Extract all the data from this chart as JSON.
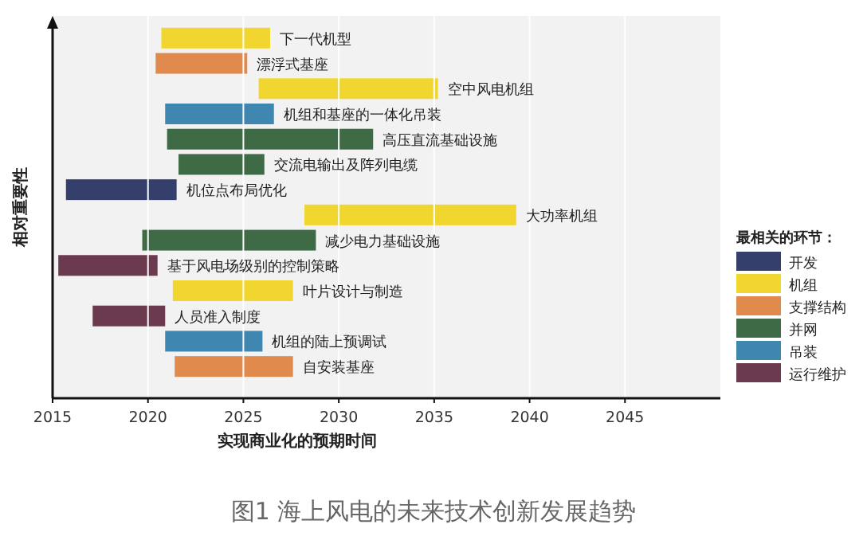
{
  "chart_data": {
    "type": "bar",
    "orientation": "horizontal",
    "title": "图1 海上风电的未来技术创新发展趋势",
    "xlabel": "实现商业化的预期时间",
    "ylabel": "相对重要性",
    "legend_title": "最相关的环节：",
    "legend": "right",
    "grid": "x",
    "tick_labels": "x",
    "xlim": [
      2015,
      2050
    ],
    "xticks": [
      2015,
      2020,
      2025,
      2030,
      2035,
      2040,
      2045
    ],
    "categories": [
      "下一代机型",
      "漂浮式基座",
      "空中风电机组",
      "机组和基座的一体化吊装",
      "高压直流基础设施",
      "交流电输出及阵列电缆",
      "机位点布局优化",
      "大功率机组",
      "减少电力基础设施",
      "基于风电场级别的控制策略",
      "叶片设计与制造",
      "人员准入制度",
      "机组的陆上预调试",
      "自安装基座"
    ],
    "series": [
      {
        "name": "开发",
        "color": "#34406b",
        "base": [
          null,
          null,
          null,
          null,
          null,
          null,
          2015.7,
          null,
          null,
          null,
          null,
          null,
          null,
          null
        ],
        "values": [
          null,
          null,
          null,
          null,
          null,
          null,
          5.8,
          null,
          null,
          null,
          null,
          null,
          null,
          null
        ]
      },
      {
        "name": "机组",
        "color": "#f2d630",
        "base": [
          2020.7,
          null,
          2025.8,
          null,
          null,
          null,
          null,
          2028.2,
          null,
          null,
          2021.3,
          null,
          null,
          null
        ],
        "values": [
          5.7,
          null,
          9.4,
          null,
          null,
          null,
          null,
          11.1,
          null,
          null,
          6.3,
          null,
          null,
          null
        ]
      },
      {
        "name": "支撑结构",
        "color": "#e08a4e",
        "base": [
          null,
          2020.4,
          null,
          null,
          null,
          null,
          null,
          null,
          null,
          null,
          null,
          null,
          null,
          2021.4
        ],
        "values": [
          null,
          4.8,
          null,
          null,
          null,
          null,
          null,
          null,
          null,
          null,
          null,
          null,
          null,
          6.2
        ]
      },
      {
        "name": "并网",
        "color": "#3e6b45",
        "base": [
          null,
          null,
          null,
          null,
          2021.0,
          2021.6,
          null,
          null,
          2019.7,
          null,
          null,
          null,
          null,
          null
        ],
        "values": [
          null,
          null,
          null,
          null,
          10.8,
          4.5,
          null,
          null,
          9.1,
          null,
          null,
          null,
          null,
          null
        ]
      },
      {
        "name": "吊装",
        "color": "#3f86b0",
        "base": [
          null,
          null,
          null,
          2020.9,
          null,
          null,
          null,
          null,
          null,
          null,
          null,
          null,
          2020.9,
          null
        ],
        "values": [
          null,
          null,
          null,
          5.7,
          null,
          null,
          null,
          null,
          null,
          null,
          null,
          null,
          5.1,
          null
        ]
      },
      {
        "name": "运行维护",
        "color": "#6b3a4e",
        "base": [
          null,
          null,
          null,
          null,
          null,
          null,
          null,
          null,
          null,
          2015.3,
          null,
          2017.1,
          null,
          null
        ],
        "values": [
          null,
          null,
          null,
          null,
          null,
          null,
          null,
          null,
          null,
          5.2,
          null,
          3.8,
          null,
          null
        ]
      }
    ]
  }
}
